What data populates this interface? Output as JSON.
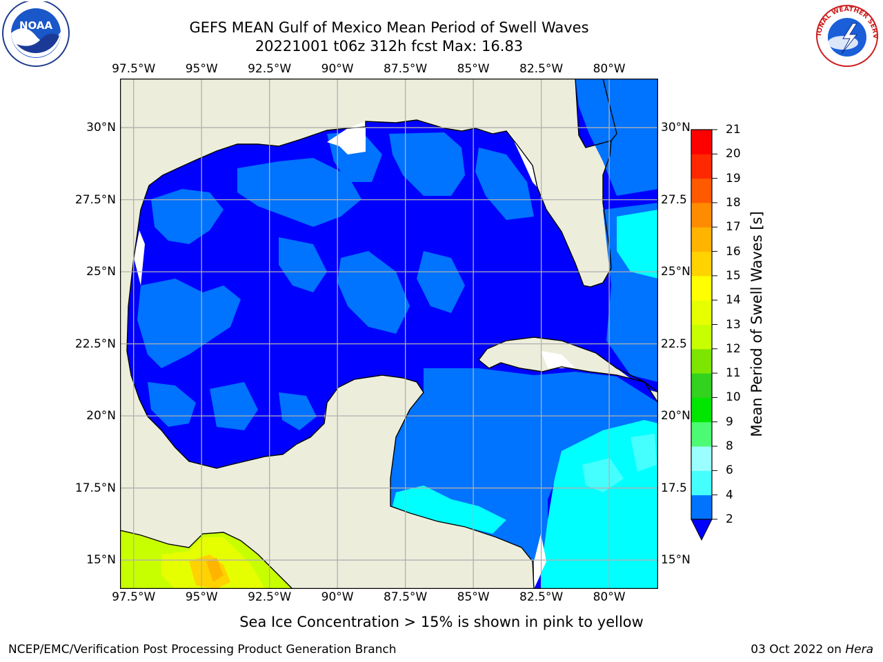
{
  "title": {
    "line1": "GEFS MEAN Gulf of Mexico Mean Period of Swell Waves",
    "line2": "20221001 t06z 312h fcst   Max: 16.83"
  },
  "map": {
    "lon_labels": [
      "97.5°W",
      "95°W",
      "92.5°W",
      "90°W",
      "87.5°W",
      "85°W",
      "82.5°W",
      "80°W"
    ],
    "lon_values": [
      -97.5,
      -95,
      -92.5,
      -90,
      -87.5,
      -85,
      -82.5,
      -80
    ],
    "lat_labels": [
      "30°N",
      "27.5°N",
      "25°N",
      "22.5°N",
      "20°N",
      "17.5°N",
      "15°N"
    ],
    "lat_values": [
      30,
      27.5,
      25,
      22.5,
      20,
      17.5,
      15
    ],
    "right_lat_labels": [
      "30°N",
      "27.5",
      "25°N",
      "22.5",
      "20°N",
      "17.5",
      "15°N"
    ],
    "lon_range": [
      -98,
      -78.2
    ],
    "lat_range": [
      14,
      31.7
    ],
    "colors": {
      "land": "#ededdc",
      "ocean_low": "#0000ff",
      "ocean_mid": "#0073ff",
      "ocean_high": "#00ffff",
      "grid": "#b0b0b0",
      "coast": "#000000"
    }
  },
  "colorbar": {
    "label": "Mean Period of Swell Waves [s]",
    "ticks": [
      "2",
      "4",
      "6",
      "8",
      "9",
      "10",
      "11",
      "12",
      "13",
      "14",
      "15",
      "16",
      "17",
      "18",
      "19",
      "20",
      "21"
    ],
    "colors": [
      "#0073ff",
      "#00ffff",
      "#45ffff",
      "#9cffff",
      "#4dfa73",
      "#00e600",
      "#32d21e",
      "#7de600",
      "#c8ff00",
      "#e6ff00",
      "#ffff00",
      "#ffd200",
      "#ffb400",
      "#ff8c00",
      "#ff5a00",
      "#ff2800",
      "#ff0000"
    ],
    "under_color": "#0000ff"
  },
  "note": "Sea Ice Concentration > 15% is shown in pink to yellow",
  "footer": {
    "left": "NCEP/EMC/Verification Post Processing Product Generation Branch",
    "date": "03 Oct 2022 on ",
    "host": "Hera"
  },
  "logos": {
    "left": "NOAA",
    "right": "NATIONAL WEATHER SERVICE"
  }
}
